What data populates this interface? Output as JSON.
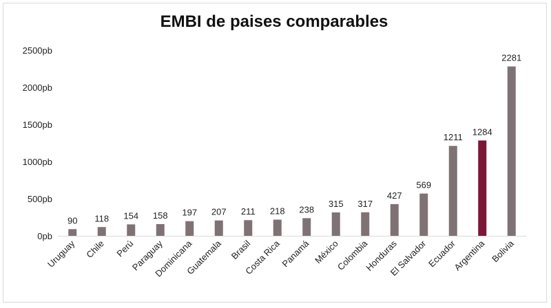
{
  "chart_data": {
    "type": "bar",
    "title": "EMBI de paises comparables",
    "xlabel": "",
    "ylabel": "",
    "categories": [
      "Uruguay",
      "Chile",
      "Perú",
      "Paraguay",
      "Dominicana",
      "Guatemala",
      "Brasil",
      "Costa Rica",
      "Panamá",
      "México",
      "Colombia",
      "Honduras",
      "El Salvador",
      "Ecuador",
      "Argentina",
      "Bolivia"
    ],
    "values": [
      90,
      118,
      154,
      158,
      197,
      207,
      211,
      218,
      238,
      315,
      317,
      427,
      569,
      1211,
      1284,
      2281
    ],
    "ylim": [
      0,
      2500
    ],
    "yticks": [
      0,
      500,
      1000,
      1500,
      2000,
      2500
    ],
    "ytick_labels": [
      "0pb",
      "500pb",
      "1000pb",
      "1500pb",
      "2000pb",
      "2500pb"
    ],
    "grid": false,
    "legend": "none",
    "colors": {
      "default_bar": "#7f7274",
      "highlight_bar": "#7b1737",
      "axis": "#d9d9d9"
    },
    "highlight_category": "Argentina"
  }
}
